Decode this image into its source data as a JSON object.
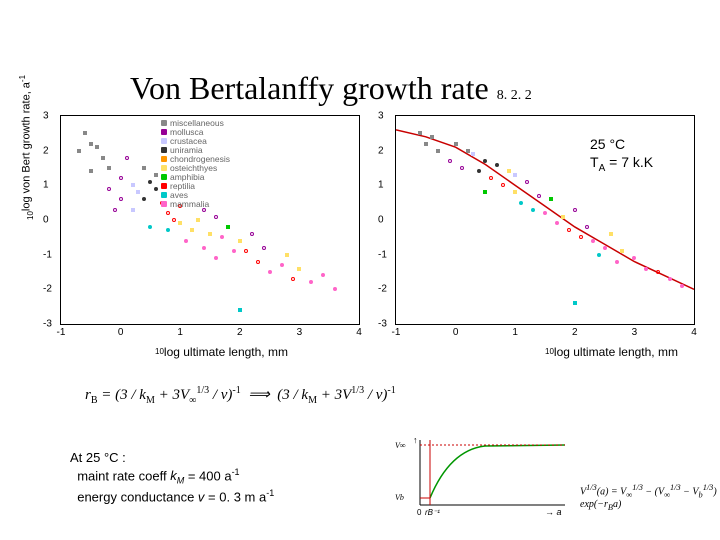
{
  "title": "Von Bertalanffy growth rate",
  "title_section": "8. 2. 2",
  "ylabel_html": "<sub>10</sub>log von Bert growth rate, a<sup>-1</sup>",
  "xlabel_left_html": "<sub>10</sub>log ultimate length, mm",
  "xlabel_right_html": "<sub>10</sub>log ultimate length, mm",
  "annot_right_html": "25 °C<br>T<sub>A</sub> = 7 k.K",
  "equation_html": "r<sub>B</sub> = (3 / k<sub>M</sub> + 3V<sub>∞</sub><sup>1/3</sup> / v)<sup>-1</sup> &nbsp;⟹&nbsp; (3 / k<sub>M</sub> + 3V<sup>1/3</sup> / v)<sup>-1</sup>",
  "footnote_html": "At 25 °C :<br>&nbsp;&nbsp;maint rate coeff <i>k<sub>M</sub></i> = 400 a<sup>-1</sup><br>&nbsp;&nbsp;energy conductance <i>v</i> = 0. 3 m a<sup>-1</sup>",
  "inset_eq_html": "V<sup>1/3</sup>(a) = V<sub>∞</sub><sup>1/3</sup> − (V<sub>∞</sub><sup>1/3</sup> − V<sub>b</sub><sup>1/3</sup>) exp(−r<sub>B</sub>a)",
  "inset": {
    "ylabels": [
      "V∞1/3",
      "Vb1/3"
    ],
    "xlabel_html": "→ <i>a</i>"
  },
  "chart_left": {
    "type": "scatter",
    "xlim": [
      -1,
      4
    ],
    "xticks": [
      -1,
      0,
      1,
      2,
      3,
      4
    ],
    "ylim": [
      -3,
      3
    ],
    "yticks": [
      -3,
      -2,
      -1,
      0,
      1,
      2,
      3
    ],
    "background_color": "#ffffff",
    "legend": [
      {
        "label": "miscellaneous",
        "color": "#888888"
      },
      {
        "label": "mollusca",
        "color": "#960096"
      },
      {
        "label": "crustacea",
        "color": "#c8c8ff"
      },
      {
        "label": "uniramia",
        "color": "#333333"
      },
      {
        "label": "chondrogenesis",
        "color": "#ff9600"
      },
      {
        "label": "osteichthyes",
        "color": "#ffe066"
      },
      {
        "label": "amphibia",
        "color": "#00c800"
      },
      {
        "label": "reptilia",
        "color": "#ff0000"
      },
      {
        "label": "aves",
        "color": "#00c8c8"
      },
      {
        "label": "mammalia",
        "color": "#ff64c8"
      }
    ],
    "points": [
      {
        "x": -0.6,
        "y": 2.5,
        "c": "#888888",
        "m": "sq"
      },
      {
        "x": -0.5,
        "y": 2.2,
        "c": "#888888",
        "m": "sq"
      },
      {
        "x": -0.4,
        "y": 2.1,
        "c": "#888888",
        "m": "sq"
      },
      {
        "x": -0.3,
        "y": 1.8,
        "c": "#888888",
        "m": "sq"
      },
      {
        "x": -0.2,
        "y": 1.5,
        "c": "#888888",
        "m": "sq"
      },
      {
        "x": -0.2,
        "y": 0.9,
        "c": "#960096",
        "m": "o"
      },
      {
        "x": 0.0,
        "y": 1.2,
        "c": "#960096",
        "m": "o"
      },
      {
        "x": 0.1,
        "y": 1.8,
        "c": "#960096",
        "m": "o"
      },
      {
        "x": 0.2,
        "y": 1.0,
        "c": "#c8c8ff",
        "m": "sq"
      },
      {
        "x": 0.3,
        "y": 0.8,
        "c": "#c8c8ff",
        "m": "sq"
      },
      {
        "x": 0.4,
        "y": 0.6,
        "c": "#333333",
        "m": "d"
      },
      {
        "x": 0.5,
        "y": 1.1,
        "c": "#333333",
        "m": "d"
      },
      {
        "x": 0.0,
        "y": 0.6,
        "c": "#960096",
        "m": "o"
      },
      {
        "x": -0.1,
        "y": 0.3,
        "c": "#960096",
        "m": "o"
      },
      {
        "x": 0.4,
        "y": 1.5,
        "c": "#888888",
        "m": "sq"
      },
      {
        "x": 0.6,
        "y": 1.3,
        "c": "#888888",
        "m": "sq"
      },
      {
        "x": 0.7,
        "y": 0.5,
        "c": "#ff0000",
        "m": "o"
      },
      {
        "x": 0.8,
        "y": 0.2,
        "c": "#ff0000",
        "m": "o"
      },
      {
        "x": 0.9,
        "y": 0.0,
        "c": "#ff0000",
        "m": "o"
      },
      {
        "x": 1.0,
        "y": 0.4,
        "c": "#ff0000",
        "m": "o"
      },
      {
        "x": 0.5,
        "y": -0.2,
        "c": "#00c8c8",
        "m": "d"
      },
      {
        "x": 0.8,
        "y": -0.3,
        "c": "#00c8c8",
        "m": "d"
      },
      {
        "x": 1.0,
        "y": -0.1,
        "c": "#ffe066",
        "m": "sq"
      },
      {
        "x": 1.2,
        "y": -0.3,
        "c": "#ffe066",
        "m": "sq"
      },
      {
        "x": 1.3,
        "y": 0.0,
        "c": "#ffe066",
        "m": "sq"
      },
      {
        "x": 1.5,
        "y": -0.4,
        "c": "#ffe066",
        "m": "sq"
      },
      {
        "x": 1.4,
        "y": 0.3,
        "c": "#960096",
        "m": "o"
      },
      {
        "x": 1.6,
        "y": 0.1,
        "c": "#960096",
        "m": "o"
      },
      {
        "x": 1.1,
        "y": -0.6,
        "c": "#ff64c8",
        "m": "d"
      },
      {
        "x": 1.4,
        "y": -0.8,
        "c": "#ff64c8",
        "m": "d"
      },
      {
        "x": 1.7,
        "y": -0.5,
        "c": "#ff64c8",
        "m": "d"
      },
      {
        "x": 1.9,
        "y": -0.9,
        "c": "#ff64c8",
        "m": "d"
      },
      {
        "x": 1.8,
        "y": -0.2,
        "c": "#00c800",
        "m": "sq"
      },
      {
        "x": 2.0,
        "y": -0.6,
        "c": "#ffe066",
        "m": "sq"
      },
      {
        "x": 2.1,
        "y": -0.9,
        "c": "#ff0000",
        "m": "o"
      },
      {
        "x": 2.3,
        "y": -1.2,
        "c": "#ff0000",
        "m": "o"
      },
      {
        "x": 2.2,
        "y": -0.4,
        "c": "#960096",
        "m": "o"
      },
      {
        "x": 2.4,
        "y": -0.8,
        "c": "#960096",
        "m": "o"
      },
      {
        "x": 2.5,
        "y": -1.5,
        "c": "#ff64c8",
        "m": "d"
      },
      {
        "x": 2.7,
        "y": -1.3,
        "c": "#ff64c8",
        "m": "d"
      },
      {
        "x": 2.8,
        "y": -1.0,
        "c": "#ffe066",
        "m": "sq"
      },
      {
        "x": 3.0,
        "y": -1.4,
        "c": "#ffe066",
        "m": "sq"
      },
      {
        "x": 3.2,
        "y": -1.8,
        "c": "#ff64c8",
        "m": "d"
      },
      {
        "x": 3.4,
        "y": -1.6,
        "c": "#ff64c8",
        "m": "d"
      },
      {
        "x": 2.0,
        "y": -2.6,
        "c": "#00c8c8",
        "m": "sq"
      },
      {
        "x": 3.6,
        "y": -2.0,
        "c": "#ff64c8",
        "m": "d"
      },
      {
        "x": 0.6,
        "y": 0.9,
        "c": "#333333",
        "m": "d"
      },
      {
        "x": 0.2,
        "y": 0.3,
        "c": "#c8c8ff",
        "m": "sq"
      },
      {
        "x": -0.5,
        "y": 1.4,
        "c": "#888888",
        "m": "sq"
      },
      {
        "x": -0.7,
        "y": 2.0,
        "c": "#888888",
        "m": "sq"
      },
      {
        "x": 1.6,
        "y": -1.1,
        "c": "#ff64c8",
        "m": "d"
      },
      {
        "x": 2.9,
        "y": -1.7,
        "c": "#ff0000",
        "m": "o"
      }
    ]
  },
  "chart_right": {
    "type": "scatter",
    "xlim": [
      -1,
      4
    ],
    "xticks": [
      -1,
      0,
      1,
      2,
      3,
      4
    ],
    "ylim": [
      -3,
      3
    ],
    "yticks": [
      -3,
      -2,
      -1,
      0,
      1,
      2,
      3
    ],
    "background_color": "#ffffff",
    "curve": {
      "color": "#c80000",
      "width": 1.5,
      "points": [
        [
          -1,
          2.6
        ],
        [
          -0.5,
          2.4
        ],
        [
          0,
          2.1
        ],
        [
          0.5,
          1.6
        ],
        [
          1,
          1.0
        ],
        [
          1.5,
          0.4
        ],
        [
          2,
          -0.2
        ],
        [
          2.5,
          -0.7
        ],
        [
          3,
          -1.2
        ],
        [
          3.5,
          -1.6
        ],
        [
          4,
          -2.0
        ]
      ]
    },
    "points": [
      {
        "x": -0.6,
        "y": 2.5,
        "c": "#888888",
        "m": "sq"
      },
      {
        "x": -0.5,
        "y": 2.2,
        "c": "#888888",
        "m": "sq"
      },
      {
        "x": -0.3,
        "y": 2.0,
        "c": "#888888",
        "m": "sq"
      },
      {
        "x": -0.1,
        "y": 1.7,
        "c": "#960096",
        "m": "o"
      },
      {
        "x": 0.1,
        "y": 1.5,
        "c": "#960096",
        "m": "o"
      },
      {
        "x": 0.3,
        "y": 1.9,
        "c": "#c8c8ff",
        "m": "sq"
      },
      {
        "x": 0.4,
        "y": 1.4,
        "c": "#333333",
        "m": "d"
      },
      {
        "x": 0.5,
        "y": 1.7,
        "c": "#333333",
        "m": "d"
      },
      {
        "x": 0.6,
        "y": 1.2,
        "c": "#ff0000",
        "m": "o"
      },
      {
        "x": 0.8,
        "y": 1.0,
        "c": "#ff0000",
        "m": "o"
      },
      {
        "x": 0.9,
        "y": 1.4,
        "c": "#ffe066",
        "m": "sq"
      },
      {
        "x": 1.0,
        "y": 0.8,
        "c": "#ffe066",
        "m": "sq"
      },
      {
        "x": 1.1,
        "y": 0.5,
        "c": "#00c8c8",
        "m": "d"
      },
      {
        "x": 1.3,
        "y": 0.3,
        "c": "#00c8c8",
        "m": "d"
      },
      {
        "x": 1.2,
        "y": 1.1,
        "c": "#960096",
        "m": "o"
      },
      {
        "x": 1.4,
        "y": 0.7,
        "c": "#960096",
        "m": "o"
      },
      {
        "x": 1.5,
        "y": 0.2,
        "c": "#ff64c8",
        "m": "d"
      },
      {
        "x": 1.7,
        "y": -0.1,
        "c": "#ff64c8",
        "m": "d"
      },
      {
        "x": 1.6,
        "y": 0.6,
        "c": "#00c800",
        "m": "sq"
      },
      {
        "x": 1.8,
        "y": 0.1,
        "c": "#ffe066",
        "m": "sq"
      },
      {
        "x": 1.9,
        "y": -0.3,
        "c": "#ff0000",
        "m": "o"
      },
      {
        "x": 2.1,
        "y": -0.5,
        "c": "#ff0000",
        "m": "o"
      },
      {
        "x": 2.0,
        "y": 0.3,
        "c": "#960096",
        "m": "o"
      },
      {
        "x": 2.2,
        "y": -0.2,
        "c": "#960096",
        "m": "o"
      },
      {
        "x": 2.3,
        "y": -0.6,
        "c": "#ff64c8",
        "m": "d"
      },
      {
        "x": 2.5,
        "y": -0.8,
        "c": "#ff64c8",
        "m": "d"
      },
      {
        "x": 2.6,
        "y": -0.4,
        "c": "#ffe066",
        "m": "sq"
      },
      {
        "x": 2.8,
        "y": -0.9,
        "c": "#ffe066",
        "m": "sq"
      },
      {
        "x": 3.0,
        "y": -1.1,
        "c": "#ff64c8",
        "m": "d"
      },
      {
        "x": 3.2,
        "y": -1.4,
        "c": "#ff64c8",
        "m": "d"
      },
      {
        "x": 3.4,
        "y": -1.5,
        "c": "#ff0000",
        "m": "o"
      },
      {
        "x": 3.6,
        "y": -1.7,
        "c": "#ff64c8",
        "m": "d"
      },
      {
        "x": 0.0,
        "y": 2.2,
        "c": "#888888",
        "m": "sq"
      },
      {
        "x": 0.7,
        "y": 1.6,
        "c": "#333333",
        "m": "d"
      },
      {
        "x": 2.4,
        "y": -1.0,
        "c": "#00c8c8",
        "m": "d"
      },
      {
        "x": 2.7,
        "y": -1.2,
        "c": "#ff64c8",
        "m": "d"
      },
      {
        "x": 1.0,
        "y": 1.3,
        "c": "#c8c8ff",
        "m": "sq"
      },
      {
        "x": 0.5,
        "y": 0.8,
        "c": "#00c800",
        "m": "sq"
      },
      {
        "x": 2.0,
        "y": -2.4,
        "c": "#00c8c8",
        "m": "sq"
      },
      {
        "x": 3.8,
        "y": -1.9,
        "c": "#ff64c8",
        "m": "d"
      },
      {
        "x": -0.4,
        "y": 2.4,
        "c": "#888888",
        "m": "sq"
      },
      {
        "x": 0.2,
        "y": 2.0,
        "c": "#888888",
        "m": "sq"
      }
    ]
  }
}
